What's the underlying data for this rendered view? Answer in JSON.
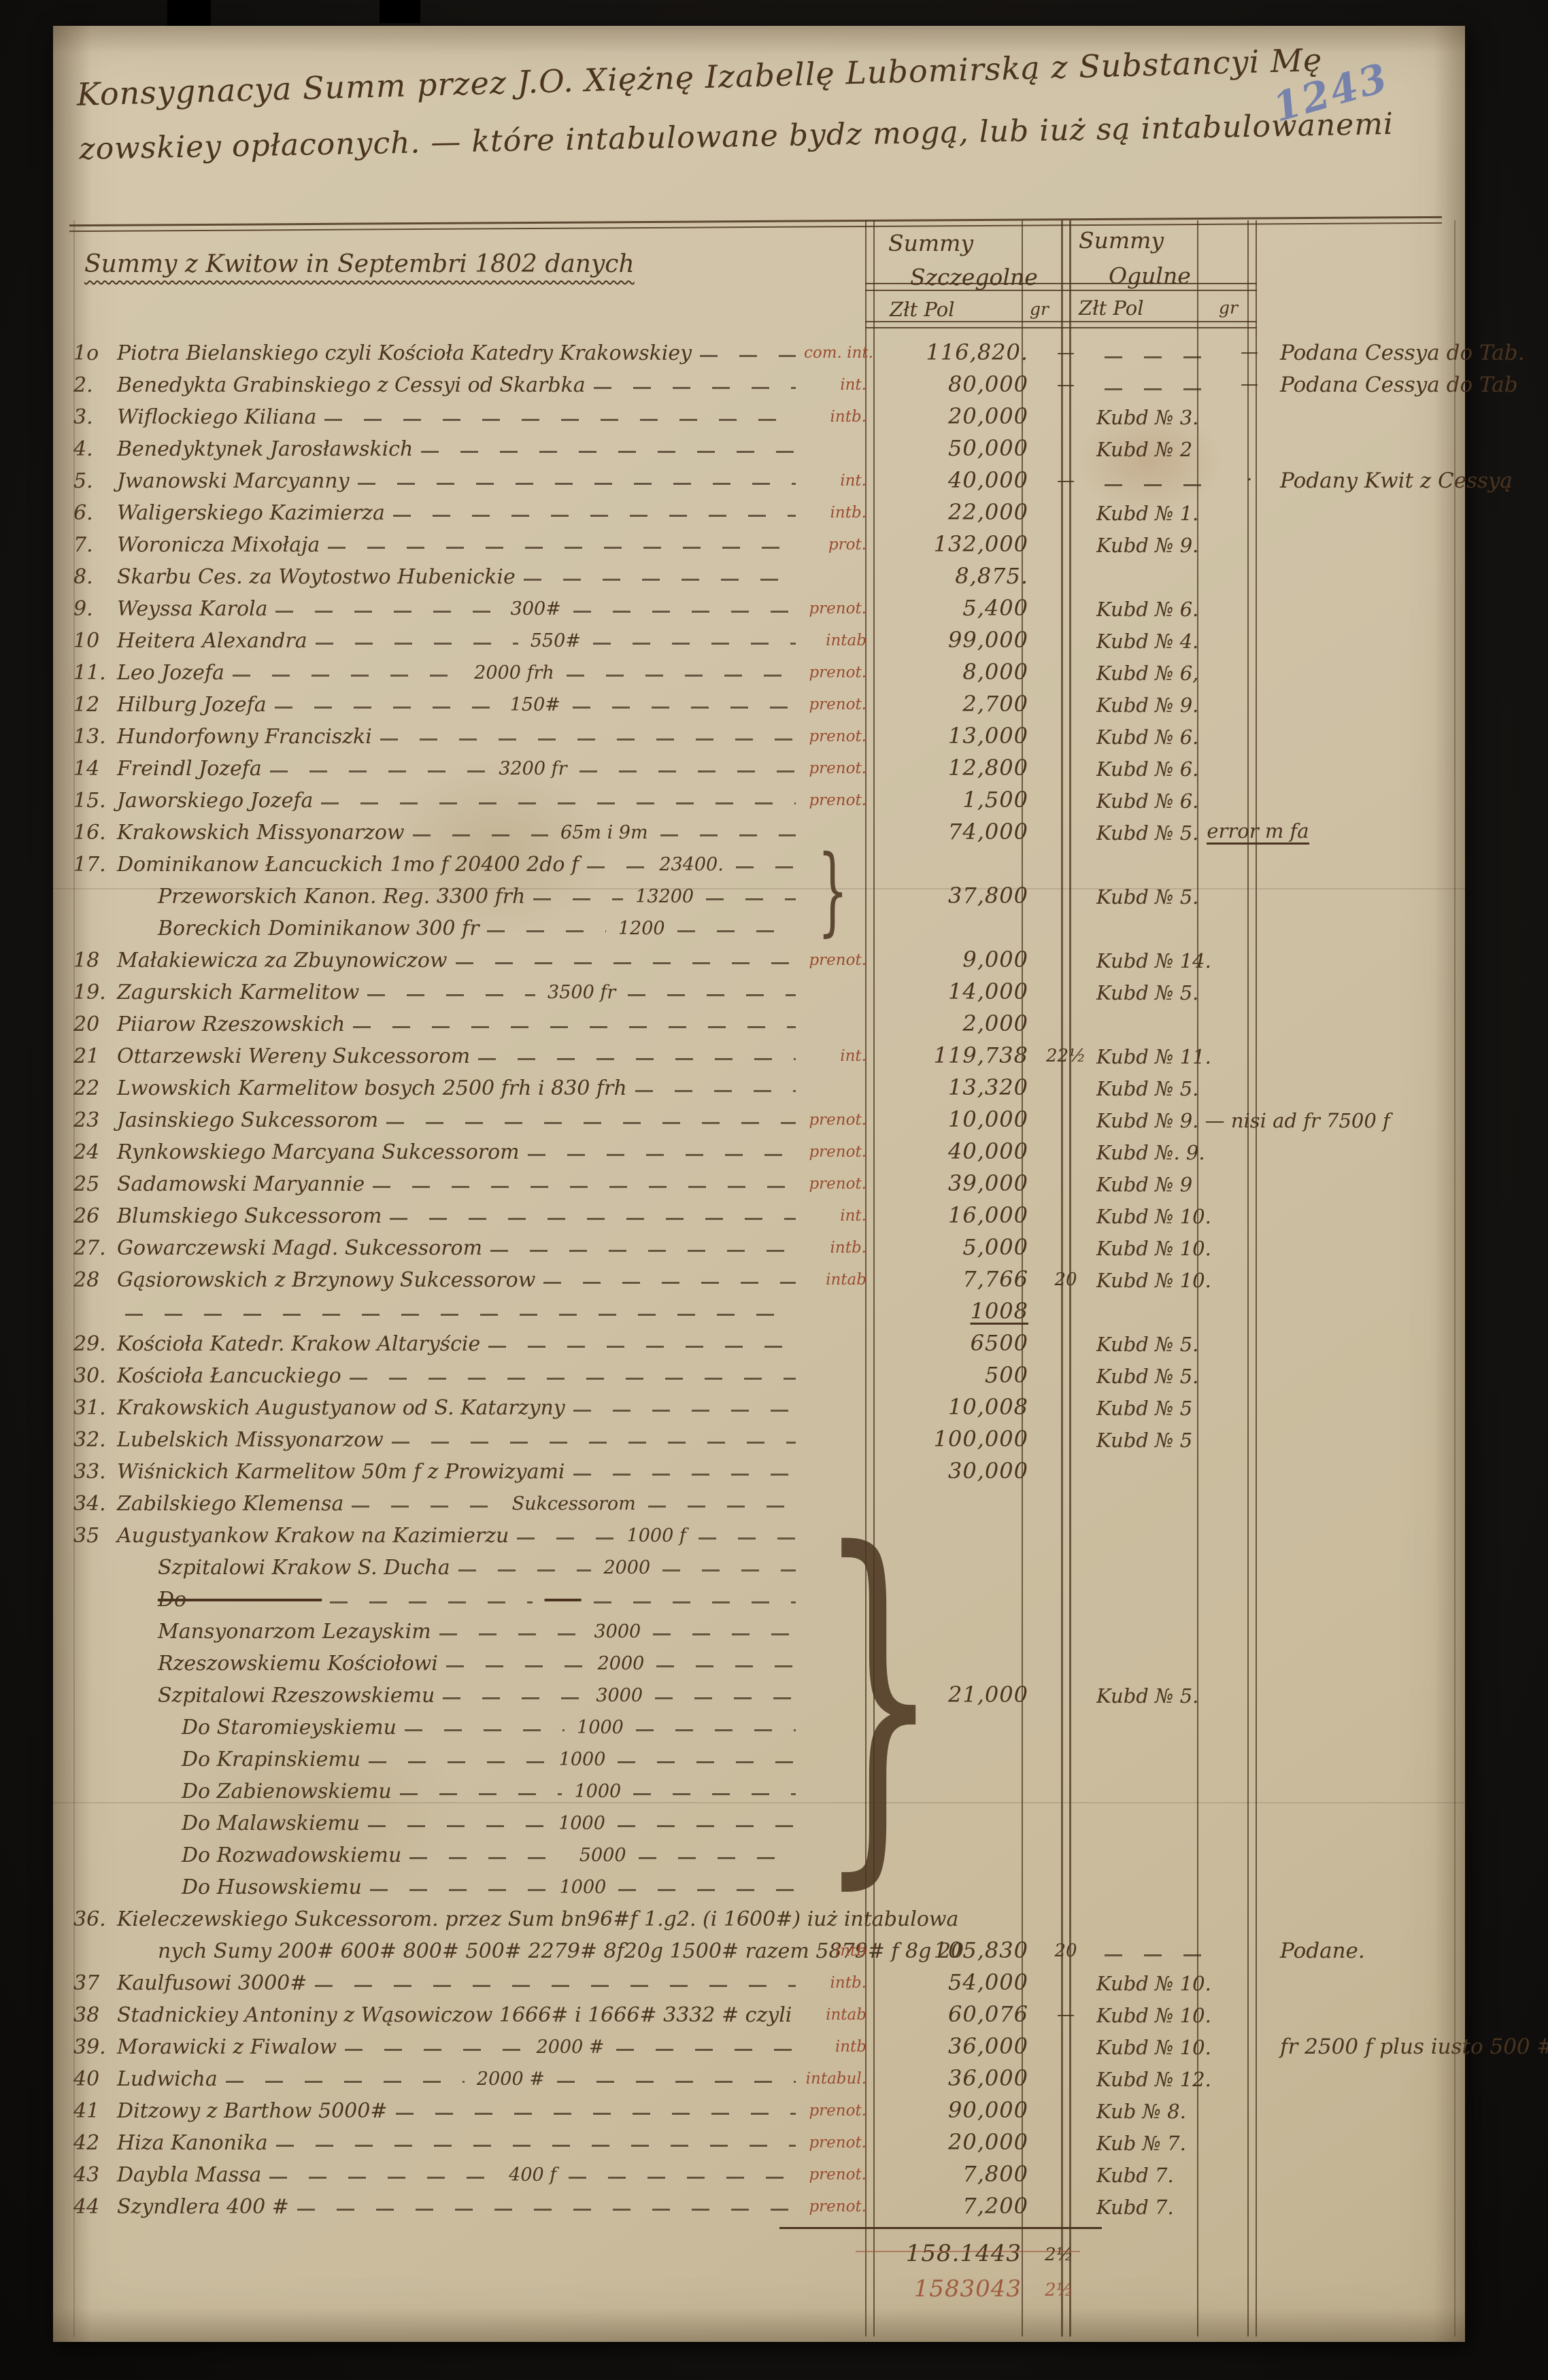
{
  "header": {
    "archival_number": "1243",
    "title_line1": "Konsygnacya Summ przez J.O. Xiężnę Izabellę Lubomirską z Substancyi Mę",
    "title_line2": "zowskiey opłaconych. — które intabulowane bydz mogą, lub iuż są intabulowanemi",
    "table_caption": "Summy z Kwitow in Septembri 1802 danych",
    "col_szczegolne_line1": "Summy",
    "col_szczegolne_line2": "Szczegolne",
    "col_ogulne_line1": "Summy",
    "col_ogulne_line2": "Ogulne",
    "sub_zlt_pol_1": "Złt Pol",
    "sub_gr_1": "gr",
    "sub_zlt_pol_2": "Złt Pol",
    "sub_gr_2": "gr"
  },
  "ink": {
    "main": "#4a3420",
    "red": "#9a4c30",
    "blue": "#6878ad"
  },
  "rows": [
    {
      "n": "1o",
      "name": "Piotra Bielanskiego czyli Kościoła Katedry Krakowskiey",
      "ann": "com. int.",
      "sum": "116,820.",
      "gr": "—",
      "ogd": true,
      "oggr": "—",
      "rem": "Podana Cessya do Tab."
    },
    {
      "n": "2.",
      "name": "Benedykta Grabinskiego z Cessyi od Skarbka",
      "ann": "int.",
      "sum": "80,000",
      "gr": "—",
      "ogd": true,
      "oggr": "—",
      "rem": "Podana Cessya do Tab"
    },
    {
      "n": "3.",
      "name": "Wiflockiego Kiliana",
      "ann": "intb.",
      "sum": "20,000",
      "kub": "Kubd № 3."
    },
    {
      "n": "4.",
      "name": "Benedyktynek Jarosławskich",
      "sum": "50,000",
      "kub": "Kubd № 2"
    },
    {
      "n": "5.",
      "name": "Jwanowski Marcyanny",
      "ann": "int.",
      "sum": "40,000",
      "gr": "—",
      "ogd": true,
      "oggr": "·",
      "rem": "Podany Kwit z Cessyą"
    },
    {
      "n": "6.",
      "name": "Waligerskiego Kazimierza",
      "ann": "intb.",
      "sum": "22,000",
      "kub": "Kubd № 1."
    },
    {
      "n": "7.",
      "name": "Woronicza Mixołaja",
      "ann": "prot.",
      "sum": "132,000",
      "kub": "Kubd № 9."
    },
    {
      "n": "8.",
      "name": "Skarbu Ces. za Woytostwo Hubenickie",
      "sum": "8,875."
    },
    {
      "n": "9.",
      "name": "Weyssa Karola",
      "il": "300#",
      "ann": "prenot.",
      "sum": "5,400",
      "kub": "Kubd № 6."
    },
    {
      "n": "10",
      "name": "Heitera Alexandra",
      "il": "550#",
      "ann": "intab",
      "sum": "99,000",
      "kub": "Kubd № 4."
    },
    {
      "n": "11.",
      "name": "Leo Jozefa",
      "il": "2000 frh",
      "ann": "prenot.",
      "sum": "8,000",
      "kub": "Kubd № 6,"
    },
    {
      "n": "12",
      "name": "Hilburg Jozefa",
      "il": "150#",
      "ann": "prenot.",
      "sum": "2,700",
      "kub": "Kubd № 9."
    },
    {
      "n": "13.",
      "name": "Hundorfowny Franciszki",
      "ann": "prenot.",
      "sum": "13,000",
      "kub": "Kubd № 6."
    },
    {
      "n": "14",
      "name": "Freindl Jozefa",
      "il": "3200 fr",
      "ann": "prenot.",
      "sum": "12,800",
      "kub": "Kubd № 6."
    },
    {
      "n": "15.",
      "name": "Jaworskiego Jozefa",
      "ann": "prenot.",
      "sum": "1,500",
      "kub": "Kubd № 6."
    },
    {
      "n": "16.",
      "name": "Krakowskich Missyonarzow",
      "il": "65m i 9m",
      "sum": "74,000",
      "kub": "Kubd № 5.",
      "kubx": "error m fa"
    },
    {
      "n": "17.",
      "name": "Dominikanow Łancuckich 1mo f 20400 2do f",
      "il": "23400.",
      "brace": 3
    },
    {
      "name": "Przeworskich Kanon. Reg. 3300 frh",
      "il": "13200",
      "ind": 60,
      "sum": "37,800",
      "kub": "Kubd № 5."
    },
    {
      "name": "Boreckich Dominikanow 300 fr",
      "il": "1200",
      "ind": 60
    },
    {
      "n": "18",
      "name": "Małakiewicza za Zbuynowiczow",
      "ann": "prenot.",
      "sum": "9,000",
      "kub": "Kubd № 14."
    },
    {
      "n": "19.",
      "name": "Zagurskich Karmelitow",
      "il": "3500 fr",
      "sum": "14,000",
      "kub": "Kubd № 5."
    },
    {
      "n": "20",
      "name": "Piiarow Rzeszowskich",
      "sum": "2,000"
    },
    {
      "n": "21",
      "name": "Ottarzewski Wereny Sukcessorom",
      "ann": "int.",
      "sum": "119,738",
      "gr": "22½",
      "kub": "Kubd № 11."
    },
    {
      "n": "22",
      "name": "Lwowskich Karmelitow bosych 2500 frh i 830 frh",
      "sum": "13,320",
      "kub": "Kubd № 5."
    },
    {
      "n": "23",
      "name": "Jasinskiego Sukcessorom",
      "ann": "prenot.",
      "sum": "10,000",
      "kub": "Kubd № 9. — nisi ad fr 7500 f"
    },
    {
      "n": "24",
      "name": "Rynkowskiego Marcyana Sukcessorom",
      "ann": "prenot.",
      "sum": "40,000",
      "kub": "Kubd №. 9."
    },
    {
      "n": "25",
      "name": "Sadamowski Maryannie",
      "ann": "prenot.",
      "sum": "39,000",
      "kub": "Kubd № 9"
    },
    {
      "n": "26",
      "name": "Blumskiego Sukcessorom",
      "ann": "int.",
      "sum": "16,000",
      "kub": "Kubd № 10."
    },
    {
      "n": "27.",
      "name": "Gowarczewski Magd. Sukcessorom",
      "ann": "intb.",
      "sum": "5,000",
      "kub": "Kubd № 10."
    },
    {
      "n": "28",
      "name": "Gąsiorowskich z Brzynowy Sukcessorow",
      "ann": "intab",
      "sum": "7,766",
      "gr": "20",
      "kub": "Kubd № 10."
    },
    {
      "name": "",
      "sum": "1008",
      "ul": true
    },
    {
      "n": "29.",
      "name": "Kościoła Katedr. Krakow Altaryście",
      "sum": "6500",
      "kub": "Kubd № 5."
    },
    {
      "n": "30.",
      "name": "Kościoła Łancuckiego",
      "sum": "500",
      "kub": "Kubd № 5."
    },
    {
      "n": "31.",
      "name": "Krakowskich Augustyanow od S. Katarzyny",
      "sum": "10,008",
      "kub": "Kubd № 5"
    },
    {
      "n": "32.",
      "name": "Lubelskich Missyonarzow",
      "sum": "100,000",
      "kub": "Kubd № 5"
    },
    {
      "n": "33.",
      "name": "Wiśnickich Karmelitow 50m f z Prowizyami",
      "sum": "30,000"
    },
    {
      "n": "34.",
      "name": "Zabilskiego Klemensa",
      "il": "Sukcessorom"
    },
    {
      "n": "35",
      "name": "Augustyankow Krakow na Kazimierzu",
      "il": "1000 f",
      "brace": 12
    },
    {
      "name": "Szpitalowi Krakow S. Ducha",
      "il": "2000",
      "ind": 60
    },
    {
      "name": "Do ——— ———",
      "il": "——",
      "ind": 60,
      "struck": true
    },
    {
      "name": "Mansyonarzom Lezayskim",
      "il": "3000",
      "ind": 60
    },
    {
      "name": "Rzeszowskiemu Kościołowi",
      "il": "2000",
      "ind": 60
    },
    {
      "name": "Szpitalowi Rzeszowskiemu",
      "il": "3000",
      "ind": 60,
      "sum": "21,000",
      "kub": "Kubd № 5."
    },
    {
      "name": "Do Staromieyskiemu",
      "il": "1000",
      "ind": 95
    },
    {
      "name": "Do Krapinskiemu",
      "il": "1000",
      "ind": 95
    },
    {
      "name": "Do Zabienowskiemu",
      "il": "1000",
      "ind": 95
    },
    {
      "name": "Do Malawskiemu",
      "il": "1000",
      "ind": 95
    },
    {
      "name": "Do Rozwadowskiemu",
      "il": "5000",
      "ind": 95
    },
    {
      "name": "Do Husowskiemu",
      "il": "1000",
      "ind": 95
    },
    {
      "n": "36.",
      "name": "Kieleczewskiego Sukcessorom. przez Sum bn96#f 1.g2. (i 1600#) iuż intabulowa"
    },
    {
      "name": "nych Sumy 200# 600# 800# 500# 2279# 8f20g 1500# razem 5879# f 8g 20",
      "ind": 60,
      "ann": "intb",
      "sum": "105,830",
      "gr": "20",
      "ogd": true,
      "rem": "Podane."
    },
    {
      "n": "37",
      "name": "Kaulfusowi 3000#",
      "ann": "intb.",
      "sum": "54,000",
      "kub": "Kubd № 10."
    },
    {
      "n": "38",
      "name": "Stadnickiey Antoniny z Wąsowiczow 1666# i 1666# 3332 # czyli",
      "ann": "intab",
      "sum": "60,076",
      "gr": "—",
      "kub": "Kubd № 10."
    },
    {
      "n": "39.",
      "name": "Morawicki z Fiwalow",
      "il": "2000 #",
      "ann": "intb",
      "sum": "36,000",
      "kub": "Kubd № 10.",
      "rem": "fr 2500 f plus iusto 500 #"
    },
    {
      "n": "40",
      "name": "Ludwicha",
      "il": "2000 #",
      "ann": "intabul.",
      "sum": "36,000",
      "kub": "Kubd № 12."
    },
    {
      "n": "41",
      "name": "Ditzowy z Barthow 5000#",
      "ann": "prenot.",
      "sum": "90,000",
      "kub": "Kub № 8."
    },
    {
      "n": "42",
      "name": "Hiza Kanonika",
      "ann": "prenot.",
      "sum": "20,000",
      "kub": "Kub № 7."
    },
    {
      "n": "43",
      "name": "Daybla Massa",
      "il": "400 f",
      "ann": "prenot.",
      "sum": "7,800",
      "kub": "Kubd 7."
    },
    {
      "n": "44",
      "name": "Szyndlera 400 #",
      "ann": "prenot.",
      "sum": "7,200",
      "kub": "Kubd 7."
    }
  ],
  "totals": {
    "black": {
      "sum": "158.1443",
      "gr": "2½"
    },
    "red": {
      "sum": "1583043",
      "gr": "2½"
    }
  }
}
